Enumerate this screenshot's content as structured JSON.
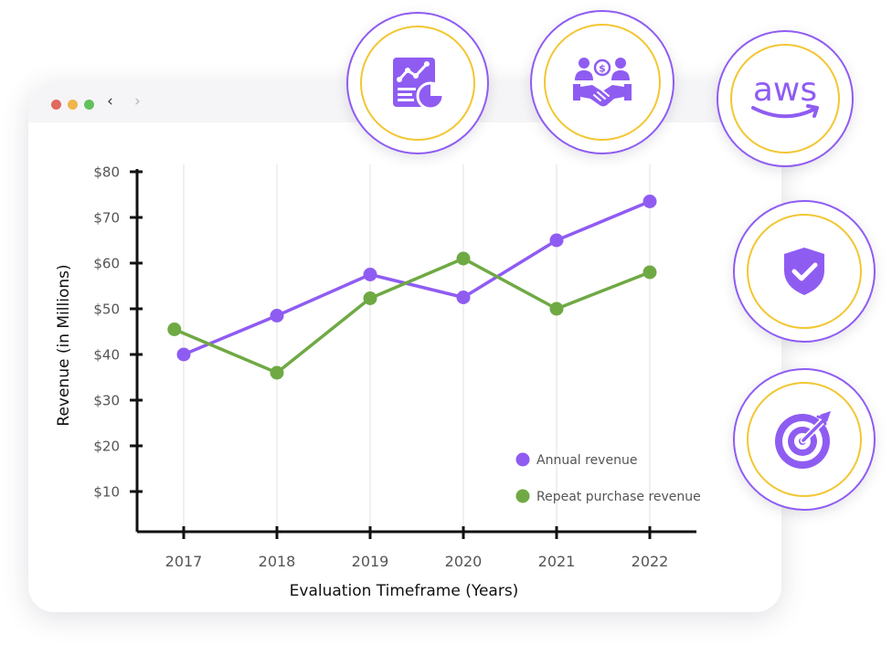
{
  "window": {
    "back_glyph": "‹",
    "forward_glyph": "›",
    "dot_colors": [
      "#e26a5d",
      "#f0b64a",
      "#62c15d"
    ]
  },
  "badges": [
    {
      "name": "analytics-report-icon"
    },
    {
      "name": "handshake-deal-icon"
    },
    {
      "name": "aws-logo-icon",
      "text": "aws"
    },
    {
      "name": "shield-check-icon"
    },
    {
      "name": "target-arrow-icon"
    }
  ],
  "colors": {
    "accent": "#8f5cf2",
    "ring": "#f3c632",
    "annual": "#8f5cf2",
    "repeat": "#6fa944",
    "axis": "#111111",
    "grid": "#e6e6e6",
    "tick_text": "#555555"
  },
  "chart_data": {
    "type": "line",
    "x": [
      "2017",
      "2018",
      "2019",
      "2020",
      "2021",
      "2022"
    ],
    "xlabel": "Evaluation Timeframe (Years)",
    "ylabel": "Revenue (in Millions)",
    "ylim": [
      0,
      80
    ],
    "yticks": [
      10,
      20,
      30,
      40,
      50,
      60,
      70,
      80
    ],
    "ytick_labels": [
      "$10",
      "$20",
      "$30",
      "$40",
      "$50",
      "$60",
      "$70",
      "$80"
    ],
    "grid": "vertical",
    "legend": "bottom-right",
    "series": [
      {
        "name": "Annual revenue",
        "x": [
          2017,
          2018,
          2019,
          2020,
          2021,
          2022
        ],
        "values": [
          40,
          48.5,
          57.5,
          52.5,
          65,
          73.5
        ],
        "color": "#8f5cf2"
      },
      {
        "name": "Repeat purchase revenue",
        "x": [
          2016.9,
          2018,
          2019,
          2020,
          2021,
          2022
        ],
        "values": [
          45.5,
          36,
          52.3,
          61,
          50,
          58
        ],
        "color": "#6fa944"
      }
    ]
  }
}
